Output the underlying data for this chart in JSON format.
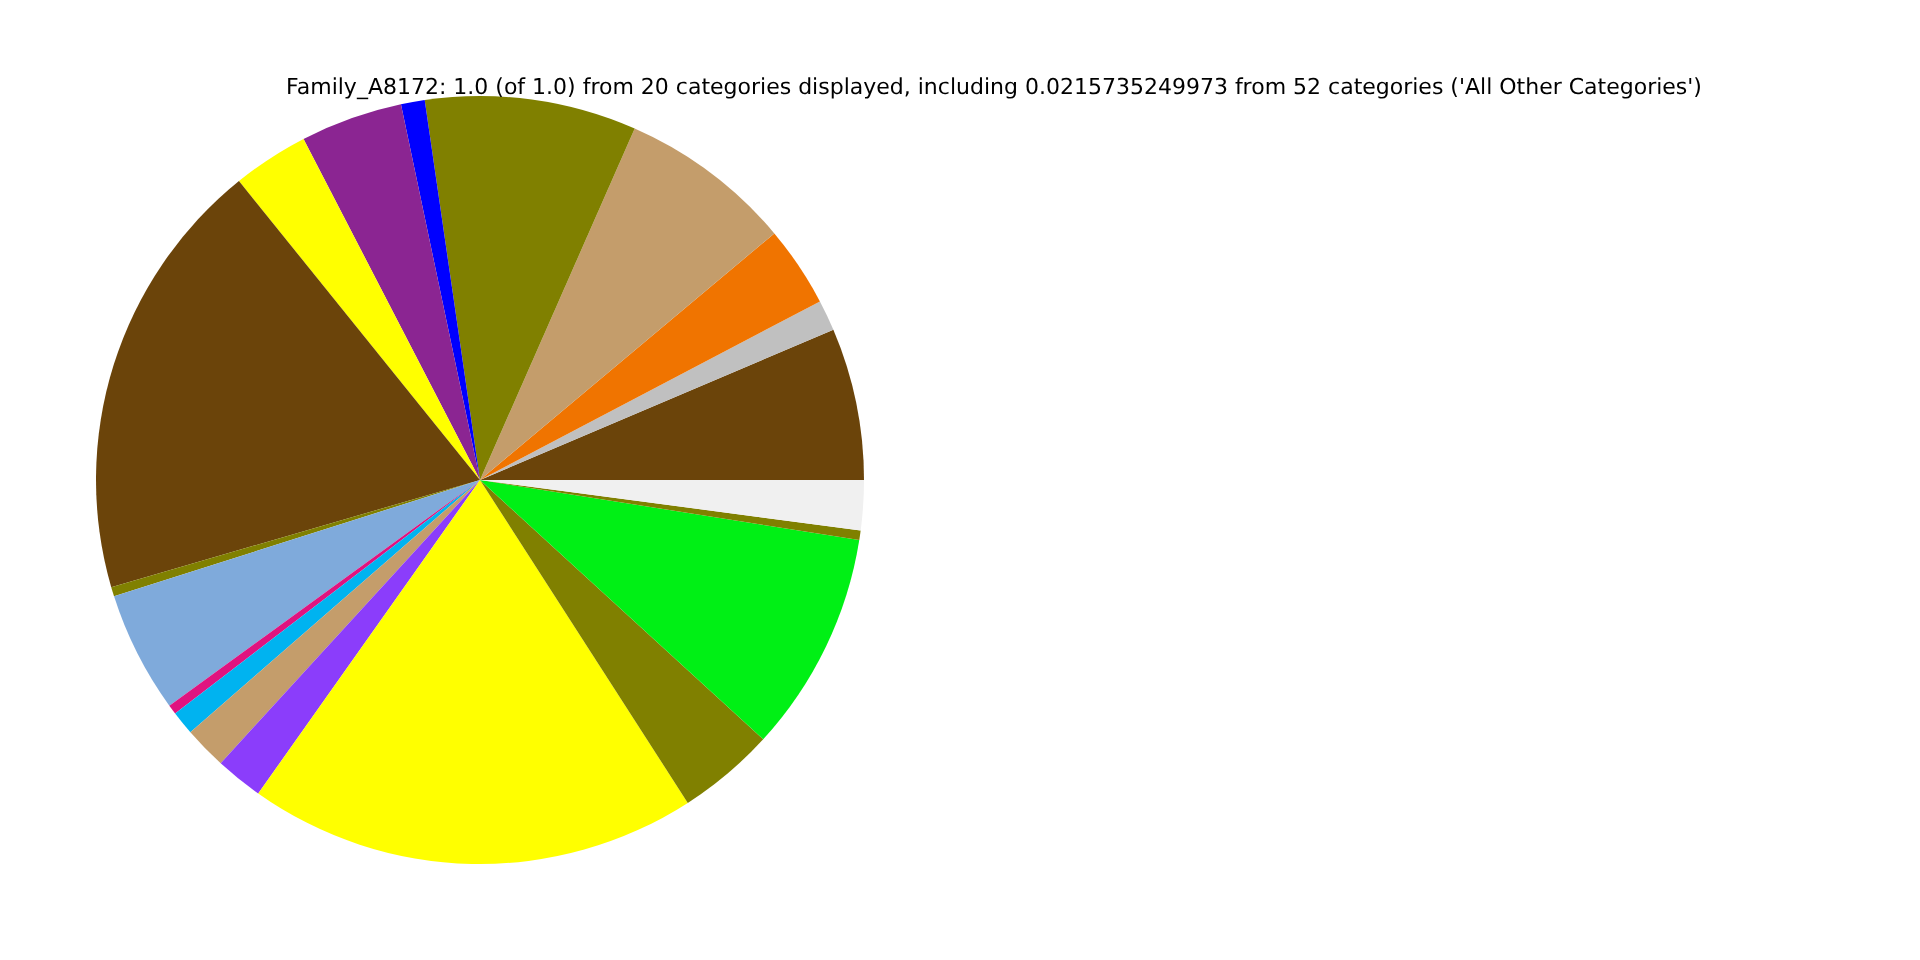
{
  "chart_data": {
    "type": "pie",
    "title": "Family_A8172: 1.0 (of 1.0) from 20 categories displayed, including 0.0215735249973 from 52 categories ('All Other Categories')",
    "categories": [
      null,
      null,
      null,
      null,
      null,
      null,
      null,
      null,
      null,
      null,
      null,
      null,
      null,
      null,
      null,
      null,
      null,
      null,
      null,
      null
    ],
    "values": [
      6.4,
      1.3,
      3.4,
      7.3,
      8.9,
      1.0,
      4.3,
      3.2,
      18.7,
      0.4,
      5.1,
      0.4,
      1.0,
      1.8,
      2.0,
      18.9,
      4.1,
      9.3,
      0.4,
      2.1
    ],
    "colors": [
      "#6b440a",
      "#c0c0c0",
      "#f07400",
      "#c49d6b",
      "#808000",
      "#0000ff",
      "#8b2592",
      "#ffff00",
      "#6b440a",
      "#808000",
      "#7faadb",
      "#e0137f",
      "#00b3f0",
      "#c49d6b",
      "#8b3dfb",
      "#ffff00",
      "#808000",
      "#00f015",
      "#808000",
      "#f0f0f0"
    ]
  }
}
